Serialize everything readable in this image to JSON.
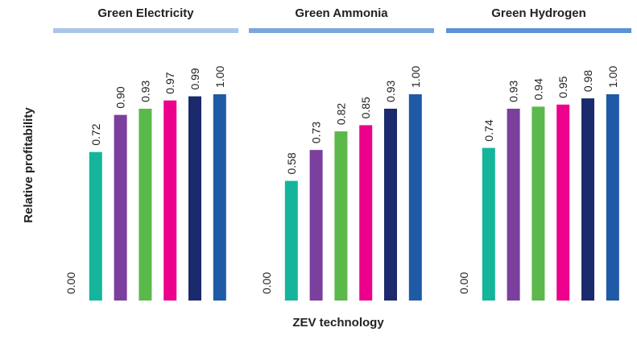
{
  "ylabel": "Relative profitability",
  "xlabel": "ZEV technology",
  "chart_data": [
    {
      "type": "bar",
      "title": "Green Electricity",
      "header_color": "#a9c6e8",
      "categories": [
        null,
        null,
        null,
        null,
        null,
        null,
        null
      ],
      "values": [
        0,
        0.72,
        0.9,
        0.93,
        0.97,
        0.99,
        1.0
      ],
      "value_labels": [
        "0.00",
        "0.72",
        "0.90",
        "0.93",
        "0.97",
        "0.99",
        "1.00"
      ],
      "colors": [
        "#14b59b",
        "#14b59b",
        "#7b3f9e",
        "#5bb84a",
        "#ec008c",
        "#1a2a6c",
        "#1f5aa6"
      ],
      "ylim": [
        0,
        1
      ]
    },
    {
      "type": "bar",
      "title": "Green Ammonia",
      "header_color": "#7aa7dc",
      "categories": [
        null,
        null,
        null,
        null,
        null,
        null,
        null
      ],
      "values": [
        0,
        0.58,
        0.73,
        0.82,
        0.85,
        0.93,
        1.0
      ],
      "value_labels": [
        "0.00",
        "0.58",
        "0.73",
        "0.82",
        "0.85",
        "0.93",
        "1.00"
      ],
      "colors": [
        "#14b59b",
        "#14b59b",
        "#7b3f9e",
        "#5bb84a",
        "#ec008c",
        "#1a2a6c",
        "#1f5aa6"
      ],
      "ylim": [
        0,
        1
      ]
    },
    {
      "type": "bar",
      "title": "Green Hydrogen",
      "header_color": "#5b93d3",
      "categories": [
        null,
        null,
        null,
        null,
        null,
        null,
        null
      ],
      "values": [
        0,
        0.74,
        0.93,
        0.94,
        0.95,
        0.98,
        1.0
      ],
      "value_labels": [
        "0.00",
        "0.74",
        "0.93",
        "0.94",
        "0.95",
        "0.98",
        "1.00"
      ],
      "colors": [
        "#14b59b",
        "#14b59b",
        "#7b3f9e",
        "#5bb84a",
        "#ec008c",
        "#1a2a6c",
        "#1f5aa6"
      ],
      "ylim": [
        0,
        1
      ]
    }
  ]
}
